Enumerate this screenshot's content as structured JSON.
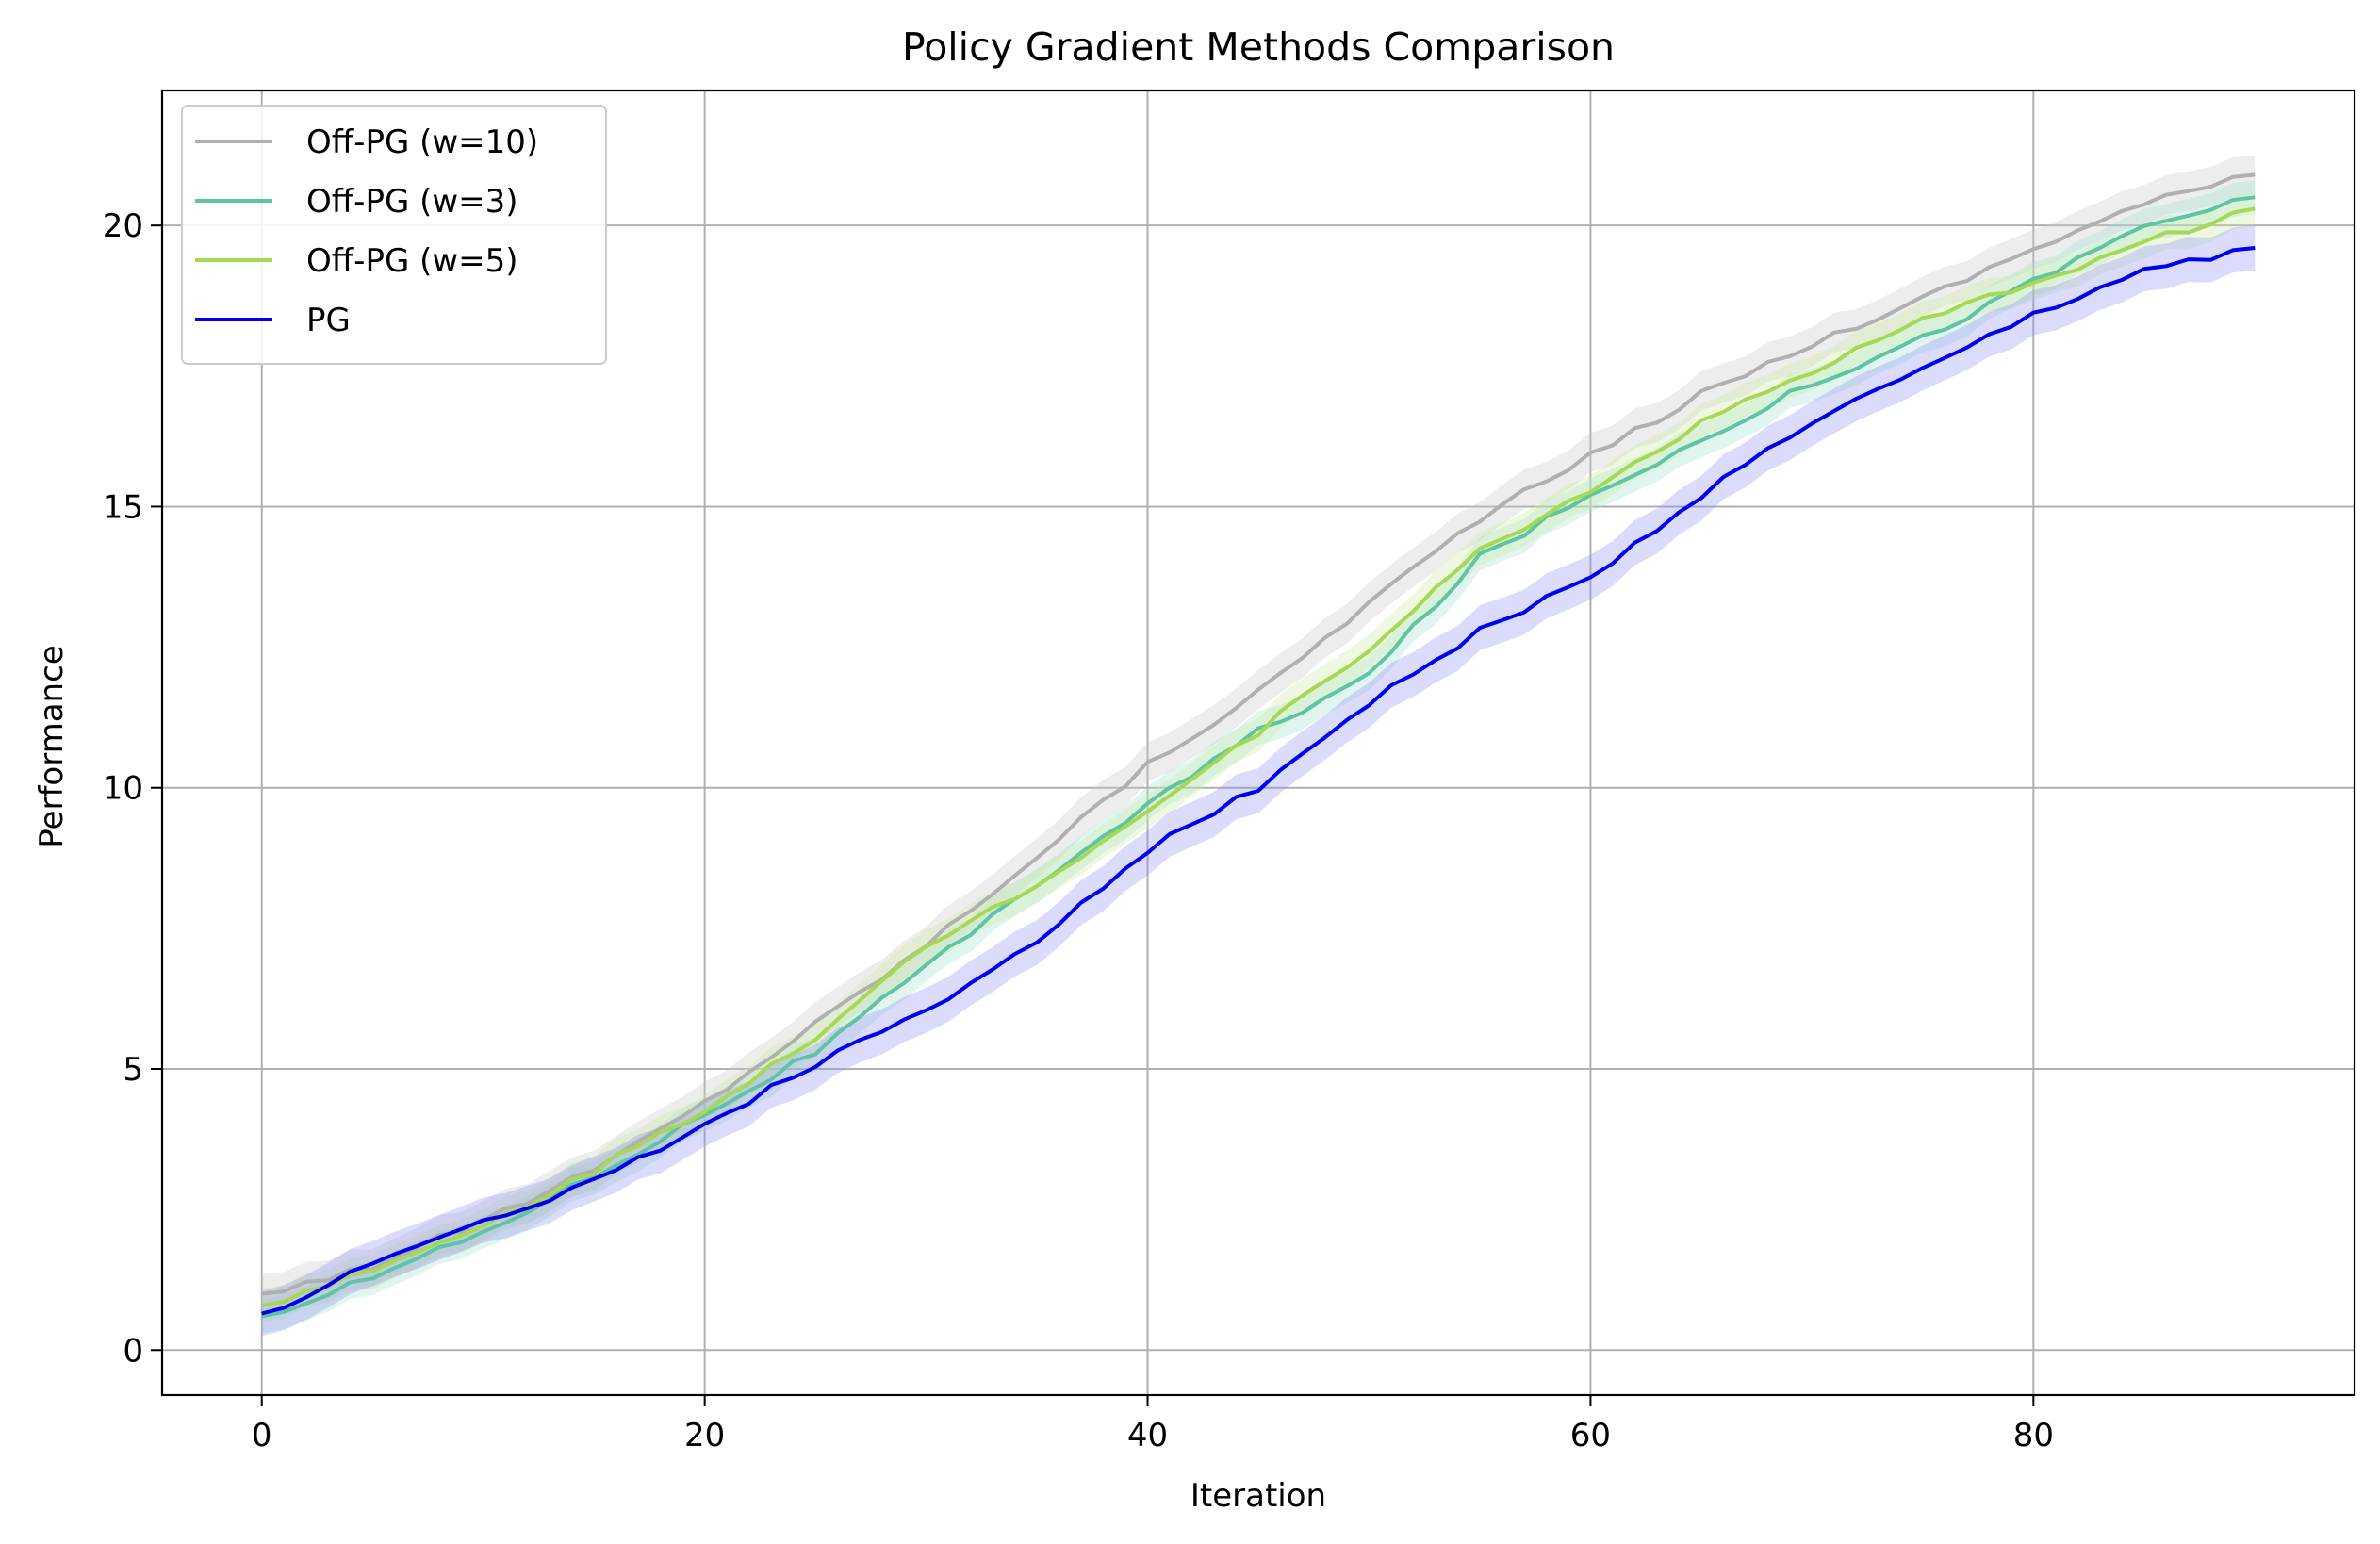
{
  "chart_data": {
    "type": "line",
    "title": "Policy Gradient Methods Comparison",
    "xlabel": "Iteration",
    "ylabel": "Performance",
    "xlim": [
      -4.5,
      94.5
    ],
    "ylim": [
      -0.8,
      22.4
    ],
    "xticks": [
      0,
      20,
      40,
      60,
      80
    ],
    "yticks": [
      0,
      5,
      10,
      15,
      20
    ],
    "xtick_labels": [
      "0",
      "20",
      "40",
      "60",
      "80"
    ],
    "ytick_labels": [
      "0",
      "5",
      "10",
      "15",
      "20"
    ],
    "grid": true,
    "legend_position": "upper-left",
    "x_range": [
      0,
      90
    ],
    "series": [
      {
        "name": "Off-PG (w=10)",
        "color": "#b0b0b0",
        "band_color": "#c8c8c8",
        "band_width": 0.35,
        "points": [
          [
            0,
            1.0
          ],
          [
            5,
            1.5
          ],
          [
            10,
            2.3
          ],
          [
            15,
            3.2
          ],
          [
            20,
            4.4
          ],
          [
            25,
            5.8
          ],
          [
            30,
            7.2
          ],
          [
            35,
            8.8
          ],
          [
            40,
            10.4
          ],
          [
            45,
            11.7
          ],
          [
            50,
            13.3
          ],
          [
            55,
            14.8
          ],
          [
            60,
            15.9
          ],
          [
            65,
            17.0
          ],
          [
            70,
            17.9
          ],
          [
            75,
            18.7
          ],
          [
            80,
            19.6
          ],
          [
            85,
            20.4
          ],
          [
            90,
            20.9
          ]
        ]
      },
      {
        "name": "Off-PG (w=3)",
        "color": "#5fc4a5",
        "band_color": "#9fe0cc",
        "band_width": 0.3,
        "points": [
          [
            0,
            0.6
          ],
          [
            5,
            1.3
          ],
          [
            10,
            2.1
          ],
          [
            15,
            3.1
          ],
          [
            20,
            4.2
          ],
          [
            25,
            5.3
          ],
          [
            30,
            6.8
          ],
          [
            35,
            8.3
          ],
          [
            40,
            9.7
          ],
          [
            45,
            11.0
          ],
          [
            50,
            12.0
          ],
          [
            55,
            14.1
          ],
          [
            60,
            15.2
          ],
          [
            65,
            16.2
          ],
          [
            70,
            17.2
          ],
          [
            75,
            18.0
          ],
          [
            80,
            19.0
          ],
          [
            85,
            20.0
          ],
          [
            90,
            20.5
          ]
        ]
      },
      {
        "name": "Off-PG (w=5)",
        "color": "#a6d854",
        "band_color": "#cbe8a3",
        "band_width": 0.3,
        "points": [
          [
            0,
            0.8
          ],
          [
            5,
            1.4
          ],
          [
            10,
            2.2
          ],
          [
            15,
            3.2
          ],
          [
            20,
            4.3
          ],
          [
            25,
            5.5
          ],
          [
            30,
            7.2
          ],
          [
            35,
            8.3
          ],
          [
            40,
            9.6
          ],
          [
            45,
            11.0
          ],
          [
            50,
            12.5
          ],
          [
            55,
            14.2
          ],
          [
            60,
            15.3
          ],
          [
            65,
            16.5
          ],
          [
            70,
            17.4
          ],
          [
            75,
            18.3
          ],
          [
            80,
            19.0
          ],
          [
            85,
            19.7
          ],
          [
            90,
            20.3
          ]
        ]
      },
      {
        "name": "PG",
        "color": "#0000ee",
        "band_color": "#8f8ff5",
        "band_width": 0.4,
        "points": [
          [
            0,
            0.65
          ],
          [
            5,
            1.5
          ],
          [
            10,
            2.3
          ],
          [
            15,
            3.0
          ],
          [
            20,
            4.0
          ],
          [
            25,
            5.1
          ],
          [
            30,
            6.0
          ],
          [
            35,
            7.3
          ],
          [
            40,
            8.9
          ],
          [
            45,
            10.0
          ],
          [
            50,
            11.5
          ],
          [
            55,
            12.8
          ],
          [
            60,
            13.7
          ],
          [
            65,
            15.2
          ],
          [
            70,
            16.5
          ],
          [
            75,
            17.4
          ],
          [
            80,
            18.4
          ],
          [
            85,
            19.2
          ],
          [
            90,
            19.6
          ]
        ]
      }
    ]
  }
}
